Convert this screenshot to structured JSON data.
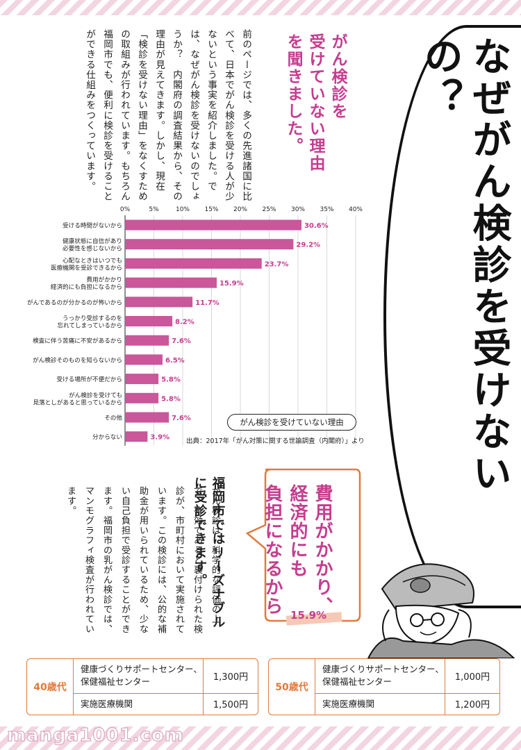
{
  "intro_text": "前のページでは、多くの先進諸国に比べて、日本でがん検診を受ける人が少ないという事実を紹介しました。では、なぜがん検診を受けないのでしょうか？　内閣府の調査結果から、その理由が見えてきます。しかし、現在「検診を受けない理由」をなくすための取組みが行われています。もちろん福岡市でも、便利に検診を受けることができる仕組みをつくっています。",
  "heading": [
    "がん検診を",
    "受けていない理由",
    "を聞きました。"
  ],
  "big_title": "なぜがん検診を受けないの？",
  "chart_data": {
    "type": "bar",
    "orientation": "horizontal",
    "title": "がん検診を受けていない理由",
    "xlim": [
      0,
      40
    ],
    "xticks": [
      "0%",
      "5%",
      "10%",
      "15%",
      "20%",
      "25%",
      "30%",
      "35%",
      "40%"
    ],
    "categories": [
      [
        "受ける時間がないから"
      ],
      [
        "健康状態に自信があり",
        "必要性を感じないから"
      ],
      [
        "心配なときはいつでも",
        "医療機関を受診できるから"
      ],
      [
        "費用がかかり",
        "経済的にも負担になるから"
      ],
      [
        "がんであるのが分かるのが怖いから"
      ],
      [
        "うっかり受診するのを",
        "忘れてしまっているから"
      ],
      [
        "検査に伴う苦痛に不安があるから"
      ],
      [
        "がん検診そのものを知らないから"
      ],
      [
        "受ける場所が不便だから"
      ],
      [
        "がん検診を受けても",
        "見落としがあると思っているから"
      ],
      [
        "その他"
      ],
      [
        "分からない"
      ]
    ],
    "values": [
      30.6,
      29.2,
      23.7,
      15.9,
      11.7,
      8.2,
      7.6,
      6.5,
      5.8,
      5.8,
      7.6,
      3.9
    ],
    "value_labels": [
      "30.6%",
      "29.2%",
      "23.7%",
      "15.9%",
      "11.7%",
      "8.2%",
      "7.6%",
      "6.5%",
      "5.8%",
      "5.8%",
      "7.6%",
      "3.9%"
    ],
    "bar_color": "#c9579a",
    "label_color": "#c53d8e"
  },
  "source": "出典：2017年「がん対策に関する世論調査（内閣府）」より",
  "lower_heading": [
    "福岡市ではリーズナブル",
    "に受診できます。"
  ],
  "lower_body": "がん検診は、科学的な評価の上で、有効であると裏付けられた検診が、市町村において実施されています。この検診には、公的な補助金が用いられているため、少ない自己負担で受診することができます。福岡市の乳がん検診では、マンモグラフィ検査が行われています。",
  "bubble_text": [
    "費用がかかり、",
    "経済的にも",
    "負担になるから"
  ],
  "bubble_percent": "15.9%",
  "tables": [
    {
      "age": "40歳代",
      "rows": [
        {
          "place": "健康づくりサポートセンター、保健福祉センター",
          "price": "1,300円"
        },
        {
          "place": "実施医療機関",
          "price": "1,500円"
        }
      ]
    },
    {
      "age": "50歳代",
      "rows": [
        {
          "place": "健康づくりサポートセンター、保健福祉センター",
          "price": "1,000円"
        },
        {
          "place": "実施医療機関",
          "price": "1,200円"
        }
      ]
    }
  ],
  "watermark": "manga1001.com",
  "colors": {
    "accent_pink": "#c53d8e",
    "accent_orange": "#e07a3c"
  }
}
